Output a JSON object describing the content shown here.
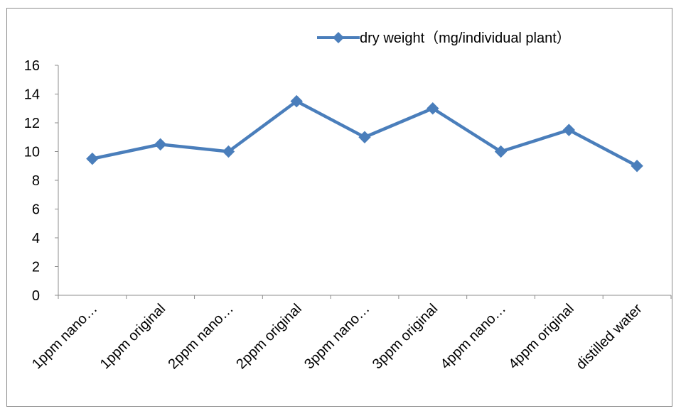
{
  "chart_data": {
    "type": "line",
    "title": "",
    "xlabel": "",
    "ylabel": "",
    "categories": [
      "1ppm nano…",
      "1ppm original",
      "2ppm nano…",
      "2ppm original",
      "3ppm nano…",
      "3ppm original",
      "4ppm nano…",
      "4ppm original",
      "distilled water"
    ],
    "series": [
      {
        "name": "dry weight（mg/individual plant）",
        "values": [
          9.5,
          10.5,
          10,
          13.5,
          11,
          13,
          10,
          11.5,
          9
        ],
        "color": "#4a7ebb",
        "marker": "diamond"
      }
    ],
    "ylim": [
      0,
      16
    ],
    "yticks": [
      0,
      2,
      4,
      6,
      8,
      10,
      12,
      14,
      16
    ],
    "grid": false,
    "legend_position": "top-right"
  }
}
